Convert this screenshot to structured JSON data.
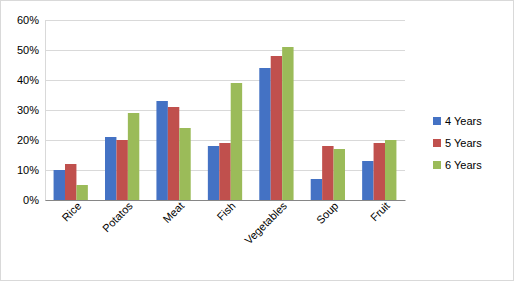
{
  "chart_data": {
    "type": "bar",
    "categories": [
      "Rice",
      "Potatos",
      "Meat",
      "Fish",
      "Vegetables",
      "Soup",
      "Fruit"
    ],
    "series": [
      {
        "name": "4 Years",
        "color": "#4472c4",
        "values": [
          10,
          21,
          33,
          18,
          44,
          7,
          13
        ]
      },
      {
        "name": "5 Years",
        "color": "#c0504d",
        "values": [
          12,
          20,
          31,
          19,
          48,
          18,
          19
        ]
      },
      {
        "name": "6 Years",
        "color": "#9bbb59",
        "values": [
          5,
          29,
          24,
          39,
          51,
          17,
          20
        ]
      }
    ],
    "ylim": [
      0,
      60
    ],
    "yticks": [
      {
        "value": 0,
        "label": "0%"
      },
      {
        "value": 10,
        "label": "10%"
      },
      {
        "value": 20,
        "label": "20%"
      },
      {
        "value": 30,
        "label": "30%"
      },
      {
        "value": 40,
        "label": "40%"
      },
      {
        "value": 50,
        "label": "50%"
      },
      {
        "value": 60,
        "label": "60%"
      }
    ],
    "grid": true,
    "legend": "right"
  }
}
